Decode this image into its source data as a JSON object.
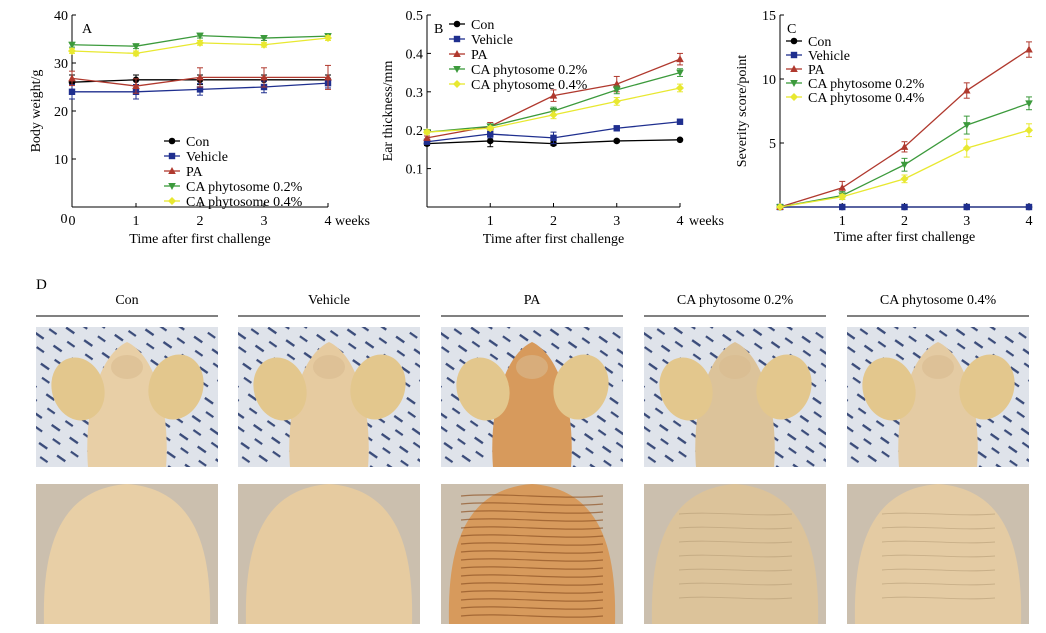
{
  "panel_d": {
    "label": "D",
    "groups": [
      "Con",
      "Vehicle",
      "PA",
      "CA phytosome 0.2%",
      "CA phytosome 0.4%"
    ]
  },
  "chart_data": [
    {
      "type": "line",
      "panel": "A",
      "xlabel": "Time after first challenge",
      "ylabel": "Body weight/g",
      "x_unit": "weeks",
      "x": [
        0,
        1,
        2,
        3,
        4
      ],
      "xlim": [
        0,
        4
      ],
      "ylim": [
        0,
        40
      ],
      "xticks": [
        0,
        1,
        2,
        3,
        4
      ],
      "yticks": [
        10,
        20,
        30,
        40
      ],
      "ytick_zero_label": "0",
      "grid": false,
      "legend_position": "bottom-center",
      "series": [
        {
          "name": "Con",
          "values": [
            26,
            26.5,
            26.5,
            26.5,
            26.5
          ],
          "errors": [
            1.5,
            1,
            1,
            1,
            1
          ],
          "color": "#000000",
          "marker": "circle"
        },
        {
          "name": "Vehicle",
          "values": [
            24,
            24,
            24.5,
            25,
            25.8
          ],
          "errors": [
            1.5,
            1.5,
            1.2,
            1.2,
            1
          ],
          "color": "#1f2f8f",
          "marker": "square"
        },
        {
          "name": "PA",
          "values": [
            26.8,
            25.2,
            27,
            27,
            27
          ],
          "errors": [
            1.5,
            1.5,
            2,
            2,
            2.5
          ],
          "color": "#b0392e",
          "marker": "triangle-up"
        },
        {
          "name": "CA phytosome 0.2%",
          "values": [
            33.8,
            33.5,
            35.7,
            35.2,
            35.6
          ],
          "errors": [
            0.5,
            0.5,
            0.5,
            0.5,
            0.5
          ],
          "color": "#3c9a3c",
          "marker": "triangle-down"
        },
        {
          "name": "CA phytosome 0.4%",
          "values": [
            32.5,
            32,
            34.2,
            33.8,
            35.2
          ],
          "errors": [
            0.5,
            0.5,
            0.5,
            0.5,
            0.5
          ],
          "color": "#e8e830",
          "marker": "diamond"
        }
      ]
    },
    {
      "type": "line",
      "panel": "B",
      "xlabel": "Time after first challenge",
      "ylabel": "Ear thickness/mm",
      "x_unit": "weeks",
      "x": [
        0,
        1,
        2,
        3,
        4
      ],
      "xlim": [
        0,
        4
      ],
      "ylim": [
        0,
        0.5
      ],
      "xticks": [
        1,
        2,
        3,
        4
      ],
      "yticks": [
        0.1,
        0.2,
        0.3,
        0.4,
        0.5
      ],
      "grid": false,
      "legend_position": "top-left",
      "series": [
        {
          "name": "Con",
          "values": [
            0.165,
            0.172,
            0.165,
            0.172,
            0.175
          ],
          "errors": [
            0.005,
            0.015,
            0.005,
            0.003,
            0.003
          ],
          "color": "#000000",
          "marker": "circle"
        },
        {
          "name": "Vehicle",
          "values": [
            0.17,
            0.19,
            0.18,
            0.205,
            0.222
          ],
          "errors": [
            0.005,
            0.01,
            0.015,
            0.005,
            0.005
          ],
          "color": "#1f2f8f",
          "marker": "square"
        },
        {
          "name": "PA",
          "values": [
            0.18,
            0.21,
            0.29,
            0.32,
            0.385
          ],
          "errors": [
            0.005,
            0.01,
            0.015,
            0.02,
            0.015
          ],
          "color": "#b0392e",
          "marker": "triangle-up"
        },
        {
          "name": "CA phytosome 0.2%",
          "values": [
            0.195,
            0.21,
            0.25,
            0.305,
            0.35
          ],
          "errors": [
            0.005,
            0.005,
            0.01,
            0.01,
            0.01
          ],
          "color": "#3c9a3c",
          "marker": "triangle-down"
        },
        {
          "name": "CA phytosome 0.4%",
          "values": [
            0.195,
            0.205,
            0.24,
            0.275,
            0.31
          ],
          "errors": [
            0.005,
            0.005,
            0.01,
            0.01,
            0.01
          ],
          "color": "#e8e830",
          "marker": "diamond"
        }
      ]
    },
    {
      "type": "line",
      "panel": "C",
      "xlabel": "Time after first challenge",
      "ylabel": "Severity score/point",
      "x": [
        0,
        1,
        2,
        3,
        4
      ],
      "xlim": [
        0,
        4
      ],
      "ylim": [
        0,
        15
      ],
      "xticks": [
        1,
        2,
        3,
        4
      ],
      "yticks": [
        5,
        10,
        15
      ],
      "grid": false,
      "legend_position": "top-left",
      "series": [
        {
          "name": "Con",
          "values": [
            0,
            0,
            0,
            0,
            0
          ],
          "errors": [
            0,
            0,
            0,
            0,
            0
          ],
          "color": "#000000",
          "marker": "circle"
        },
        {
          "name": "Vehicle",
          "values": [
            0,
            0,
            0,
            0,
            0
          ],
          "errors": [
            0,
            0,
            0,
            0,
            0
          ],
          "color": "#1f2f8f",
          "marker": "square"
        },
        {
          "name": "PA",
          "values": [
            0,
            1.5,
            4.7,
            9.1,
            12.3
          ],
          "errors": [
            0,
            0.5,
            0.4,
            0.6,
            0.6
          ],
          "color": "#b0392e",
          "marker": "triangle-up"
        },
        {
          "name": "CA phytosome 0.2%",
          "values": [
            0,
            0.9,
            3.3,
            6.4,
            8.1
          ],
          "errors": [
            0,
            0.3,
            0.5,
            0.7,
            0.5
          ],
          "color": "#3c9a3c",
          "marker": "triangle-down"
        },
        {
          "name": "CA phytosome 0.4%",
          "values": [
            0,
            0.8,
            2.2,
            4.6,
            6
          ],
          "errors": [
            0,
            0.2,
            0.3,
            0.7,
            0.5
          ],
          "color": "#e8e830",
          "marker": "diamond"
        }
      ]
    }
  ]
}
